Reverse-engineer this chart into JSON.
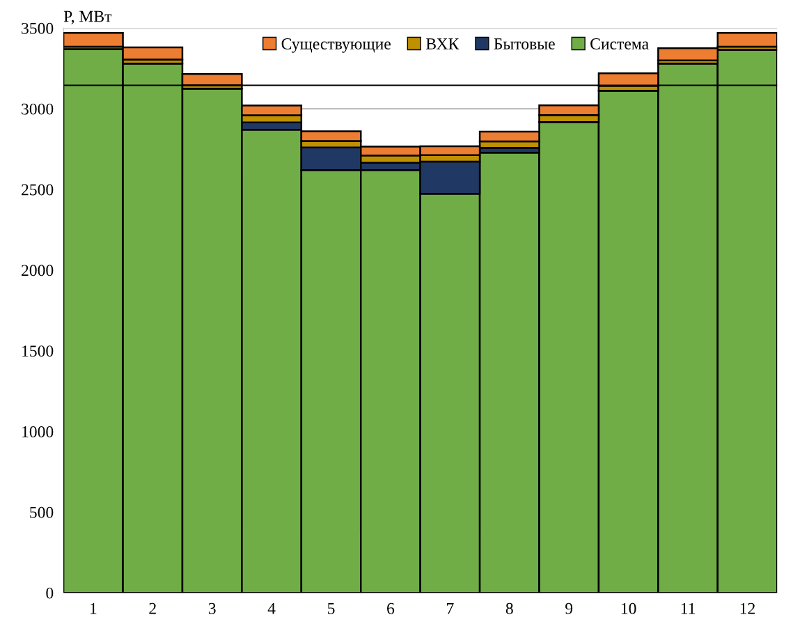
{
  "chart_data": {
    "type": "bar",
    "stacked": true,
    "ylabel": "P, МВт",
    "categories": [
      "1",
      "2",
      "3",
      "4",
      "5",
      "6",
      "7",
      "8",
      "9",
      "10",
      "11",
      "12"
    ],
    "series": [
      {
        "name": "Система",
        "color": "#70ad47",
        "values": [
          3370,
          3280,
          3125,
          2870,
          2620,
          2620,
          2473,
          2728,
          2918,
          3112,
          3280,
          3365
        ]
      },
      {
        "name": "Бытовые",
        "color": "#203864",
        "values": [
          0,
          0,
          0,
          45,
          140,
          45,
          200,
          30,
          0,
          0,
          0,
          0
        ]
      },
      {
        "name": "ВХК",
        "color": "#bf9000",
        "values": [
          15,
          25,
          20,
          45,
          40,
          45,
          40,
          40,
          43,
          30,
          20,
          20
        ]
      },
      {
        "name": "Существующие",
        "color": "#ed7d31",
        "values": [
          85,
          75,
          70,
          60,
          60,
          55,
          55,
          60,
          60,
          78,
          75,
          85
        ]
      }
    ],
    "ylim": [
      0,
      3500
    ],
    "yticks": [
      0,
      500,
      1000,
      1500,
      2000,
      2500,
      3000,
      3500
    ],
    "ref_lines": [
      {
        "axis": "y",
        "value": 3145,
        "color": "#000000"
      }
    ],
    "grid": "y",
    "legend": "top"
  }
}
